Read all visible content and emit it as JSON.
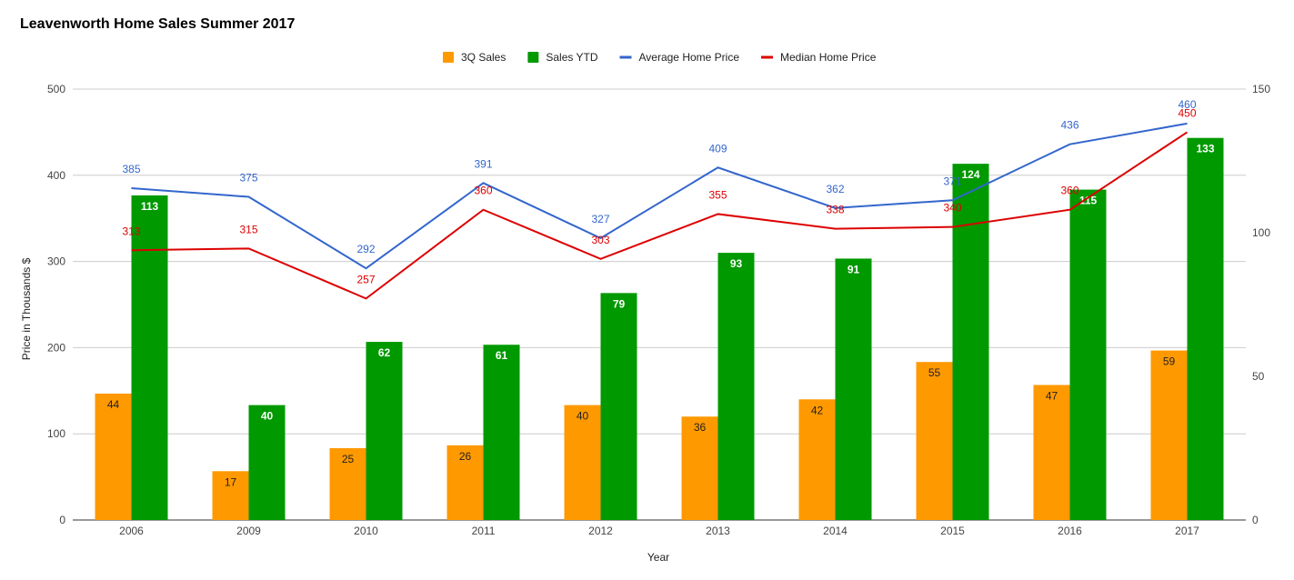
{
  "chart_data": {
    "type": "bar",
    "title": "Leavenworth Home Sales Summer 2017",
    "xlabel": "Year",
    "ylabel": "Price in Thousands $",
    "categories": [
      "2006",
      "2009",
      "2010",
      "2011",
      "2012",
      "2013",
      "2014",
      "2015",
      "2016",
      "2017"
    ],
    "ylim_left": [
      0,
      500
    ],
    "yticks_left": [
      0,
      100,
      200,
      300,
      400,
      500
    ],
    "ylim_right": [
      0,
      150
    ],
    "yticks_right": [
      0,
      50,
      100,
      150
    ],
    "grid": true,
    "legend_position": "top-center",
    "series": [
      {
        "name": "3Q Sales",
        "kind": "bar",
        "axis": "right",
        "color": "#ff9900",
        "values": [
          44,
          17,
          25,
          26,
          40,
          36,
          42,
          55,
          47,
          59
        ]
      },
      {
        "name": "Sales YTD",
        "kind": "bar",
        "axis": "right",
        "color": "#009900",
        "values": [
          113,
          40,
          62,
          61,
          79,
          93,
          91,
          124,
          115,
          133
        ]
      },
      {
        "name": "Average Home Price",
        "kind": "line",
        "axis": "left",
        "color": "#3366cc",
        "values": [
          385,
          375,
          292,
          391,
          327,
          409,
          362,
          371,
          436,
          460
        ]
      },
      {
        "name": "Median Home Price",
        "kind": "line",
        "axis": "left",
        "color": "#dd0000",
        "values": [
          313,
          315,
          257,
          360,
          303,
          355,
          338,
          340,
          360,
          450
        ]
      }
    ]
  }
}
